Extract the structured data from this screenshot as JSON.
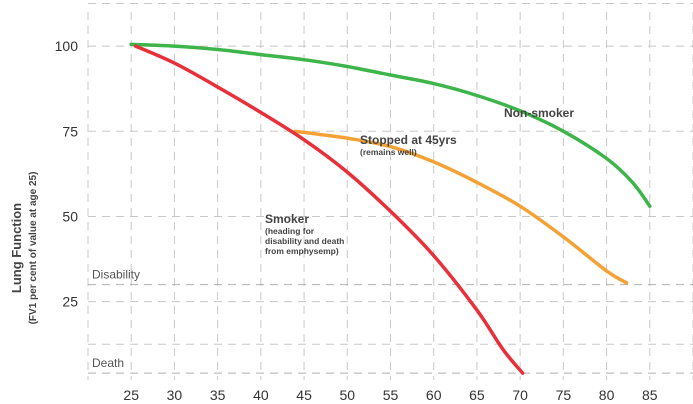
{
  "chart_data": {
    "type": "line",
    "title": "",
    "xlabel": "",
    "ylabel": "Lung Function",
    "ylabel_sub": "(FV1 per cent of value at age 25)",
    "xlim": [
      20,
      90
    ],
    "ylim": [
      2,
      110
    ],
    "x_ticks": [
      25,
      30,
      35,
      40,
      45,
      50,
      55,
      60,
      65,
      70,
      75,
      80,
      85
    ],
    "y_ticks": [
      25,
      50,
      75,
      100
    ],
    "grid": true,
    "reference_lines": [
      {
        "label": "Disability",
        "y": 30
      },
      {
        "label": "Death",
        "y": 4
      }
    ],
    "series": [
      {
        "name": "Non-smoker",
        "color": "#3db54a",
        "x": [
          25,
          30,
          35,
          40,
          45,
          50,
          55,
          60,
          65,
          70,
          75,
          80,
          83,
          85
        ],
        "y": [
          100.5,
          100,
          99,
          97.5,
          96,
          94,
          91.5,
          89,
          85.5,
          81,
          75,
          67,
          60,
          53
        ]
      },
      {
        "name": "Stopped at 45yrs",
        "color": "#f4a236",
        "x": [
          44,
          47,
          50,
          55,
          60,
          65,
          70,
          75,
          80,
          82.3
        ],
        "y": [
          75,
          74,
          73,
          70.5,
          66,
          60,
          53,
          44,
          34,
          30.5
        ]
      },
      {
        "name": "Smoker",
        "color": "#e8303a",
        "x": [
          25.5,
          30,
          35,
          40,
          45,
          50,
          55,
          60,
          65,
          68,
          70.3
        ],
        "y": [
          100,
          95,
          88,
          80.5,
          72.5,
          63,
          51.5,
          38.5,
          22.5,
          11,
          4
        ]
      }
    ],
    "annotations": [
      {
        "series": "Non-smoker",
        "text": "Non-smoker",
        "subtext": []
      },
      {
        "series": "Stopped at 45yrs",
        "text": "Stopped at 45yrs",
        "subtext": [
          "(remains well)"
        ]
      },
      {
        "series": "Smoker",
        "text": "Smoker",
        "subtext": [
          "(heading for",
          "disability and death",
          "from emphysemp)"
        ]
      }
    ]
  }
}
